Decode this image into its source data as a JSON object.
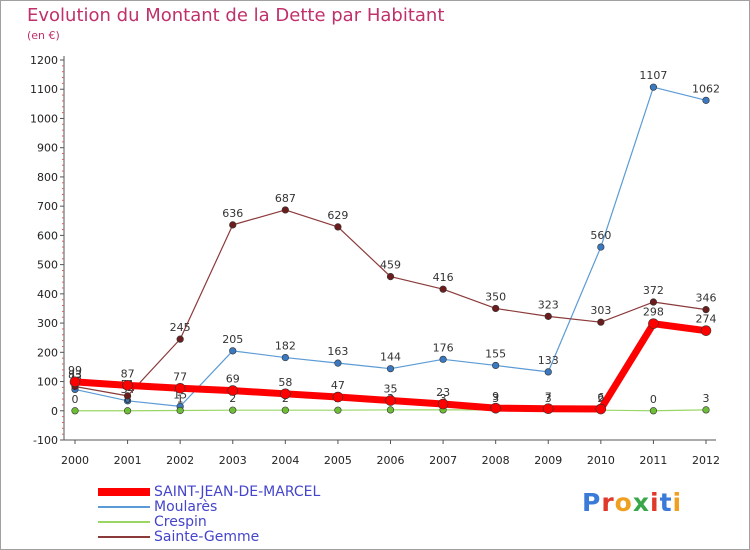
{
  "header": {
    "title": "Evolution du Montant de la Dette par Habitant",
    "subtitle": "(en €)"
  },
  "logo": {
    "letters": [
      "P",
      "r",
      "o",
      "x",
      "i",
      "t",
      "i"
    ],
    "colors": [
      "#3a7ad8",
      "#e0392b",
      "#f0a020",
      "#3aa84a",
      "#e0392b",
      "#3a7ad8",
      "#f0a020"
    ]
  },
  "chart_data": {
    "type": "line",
    "title": "Evolution du Montant de la Dette par Habitant",
    "subtitle": "(en €)",
    "xlabel": "",
    "ylabel": "",
    "x": [
      "2000",
      "2001",
      "2002",
      "2003",
      "2004",
      "2005",
      "2006",
      "2007",
      "2008",
      "2009",
      "2010",
      "2011",
      "2012"
    ],
    "ylim": [
      -100,
      1200
    ],
    "yticks": [
      -100,
      0,
      100,
      200,
      300,
      400,
      500,
      600,
      700,
      800,
      900,
      1000,
      1100,
      1200
    ],
    "grid": false,
    "legend_position": "bottom-left",
    "series": [
      {
        "name": "Moularès",
        "color": "#5b9bd5",
        "marker_color": "#3a78c0",
        "width": 1.2,
        "values": [
          73,
          34,
          15,
          205,
          182,
          163,
          144,
          176,
          155,
          133,
          560,
          1107,
          1062
        ],
        "labels": [
          "73",
          "34",
          "15",
          "205",
          "182",
          "163",
          "144",
          "176",
          "155",
          "133",
          "560",
          "1107",
          "1062"
        ]
      },
      {
        "name": "Crespin",
        "color": "#99d666",
        "marker_color": "#6ebd36",
        "width": 1.2,
        "values": [
          0,
          0,
          1,
          2,
          2,
          2,
          3,
          3,
          3,
          3,
          2,
          0,
          3
        ],
        "labels": [
          "0",
          "0",
          "1",
          "2",
          "2",
          "2",
          "3",
          "3",
          "3",
          "3",
          "2",
          "0",
          "3"
        ]
      },
      {
        "name": "Sainte-Gemme",
        "color": "#8b3a3a",
        "marker_color": "#6b1d1d",
        "width": 1.2,
        "values": [
          83,
          51,
          245,
          636,
          687,
          629,
          459,
          416,
          350,
          323,
          303,
          372,
          346
        ],
        "labels": [
          "83",
          "51",
          "245",
          "636",
          "687",
          "629",
          "459",
          "416",
          "350",
          "323",
          "303",
          "372",
          "346"
        ]
      },
      {
        "name": "SAINT-JEAN-DE-MARCEL",
        "color": "#ff0000",
        "marker_color": "#ff0000",
        "width": 7,
        "values": [
          99,
          87,
          77,
          69,
          58,
          47,
          35,
          23,
          9,
          7,
          6,
          298,
          274
        ],
        "labels": [
          "99",
          "87",
          "77",
          "69",
          "58",
          "47",
          "35",
          "23",
          "9",
          "7",
          "6",
          "298",
          "274"
        ]
      }
    ]
  },
  "legend": [
    {
      "name": "SAINT-JEAN-DE-MARCEL",
      "color": "#ff0000",
      "thick": true
    },
    {
      "name": "Moularès",
      "color": "#5b9bd5",
      "thick": false
    },
    {
      "name": "Crespin",
      "color": "#99d666",
      "thick": false
    },
    {
      "name": "Sainte-Gemme",
      "color": "#8b3a3a",
      "thick": false
    }
  ]
}
